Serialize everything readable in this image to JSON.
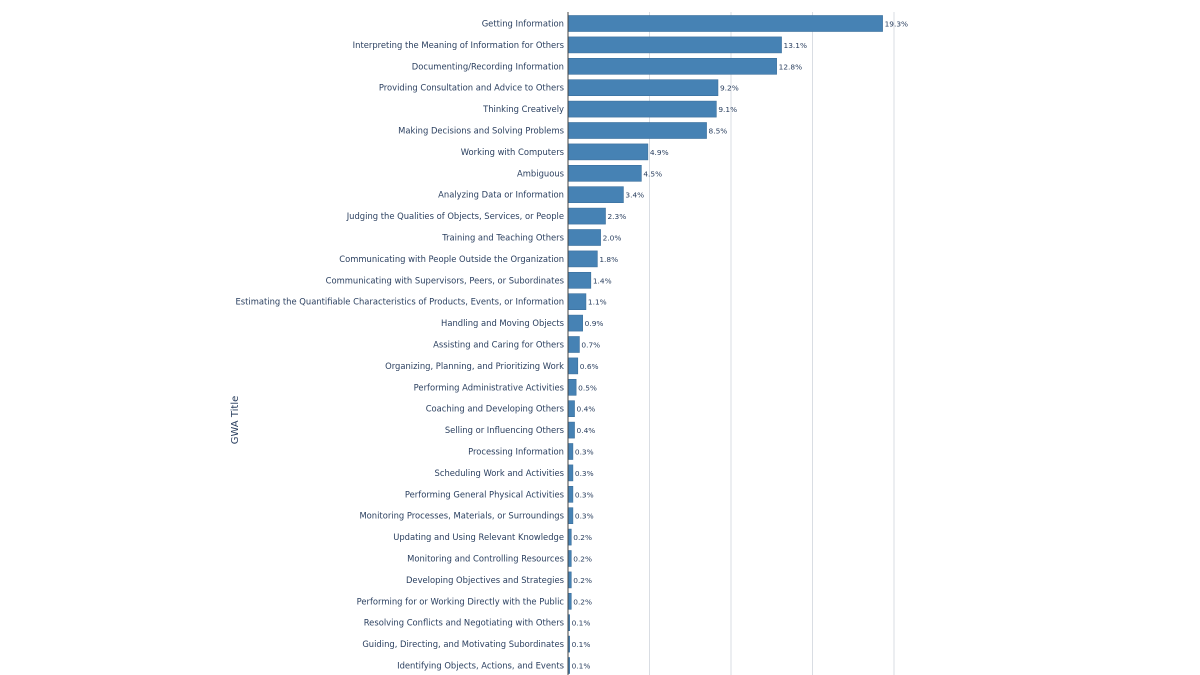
{
  "chart_data": {
    "type": "bar",
    "orientation": "horizontal",
    "title": "",
    "xlabel": "",
    "ylabel": "GWA Title",
    "xlim": [
      0,
      20
    ],
    "grid": true,
    "bar_color": "#4682b4",
    "value_suffix": "%",
    "categories": [
      "Getting Information",
      "Interpreting the Meaning of Information for Others",
      "Documenting/Recording Information",
      "Providing Consultation and Advice to Others",
      "Thinking Creatively",
      "Making Decisions and Solving Problems",
      "Working with Computers",
      "Ambiguous",
      "Analyzing Data or Information",
      "Judging the Qualities of Objects, Services, or People",
      "Training and Teaching Others",
      "Communicating with People Outside the Organization",
      "Communicating with Supervisors, Peers, or Subordinates",
      "Estimating the Quantifiable Characteristics of Products, Events, or Information",
      "Handling and Moving Objects",
      "Assisting and Caring for Others",
      "Organizing, Planning, and Prioritizing Work",
      "Performing Administrative Activities",
      "Coaching and Developing Others",
      "Selling or Influencing Others",
      "Processing Information",
      "Scheduling Work and Activities",
      "Performing General Physical Activities",
      "Monitoring Processes, Materials, or Surroundings",
      "Updating and Using Relevant Knowledge",
      "Monitoring and Controlling Resources",
      "Developing Objectives and Strategies",
      "Performing for or Working Directly with the Public",
      "Resolving Conflicts and Negotiating with Others",
      "Guiding, Directing, and Motivating Subordinates",
      "Identifying Objects, Actions, and Events"
    ],
    "values": [
      19.3,
      13.1,
      12.8,
      9.2,
      9.1,
      8.5,
      4.9,
      4.5,
      3.4,
      2.3,
      2.0,
      1.8,
      1.4,
      1.1,
      0.9,
      0.7,
      0.6,
      0.5,
      0.4,
      0.4,
      0.3,
      0.3,
      0.3,
      0.3,
      0.2,
      0.2,
      0.2,
      0.2,
      0.1,
      0.1,
      0.1
    ],
    "value_labels": [
      "19.3%",
      "13.1%",
      "12.8%",
      "9.2%",
      "9.1%",
      "8.5%",
      "4.9%",
      "4.5%",
      "3.4%",
      "2.3%",
      "2.0%",
      "1.8%",
      "1.4%",
      "1.1%",
      "0.9%",
      "0.7%",
      "0.6%",
      "0.5%",
      "0.4%",
      "0.4%",
      "0.3%",
      "0.3%",
      "0.3%",
      "0.3%",
      "0.2%",
      "0.2%",
      "0.2%",
      "0.2%",
      "0.1%",
      "0.1%",
      "0.1%"
    ]
  }
}
